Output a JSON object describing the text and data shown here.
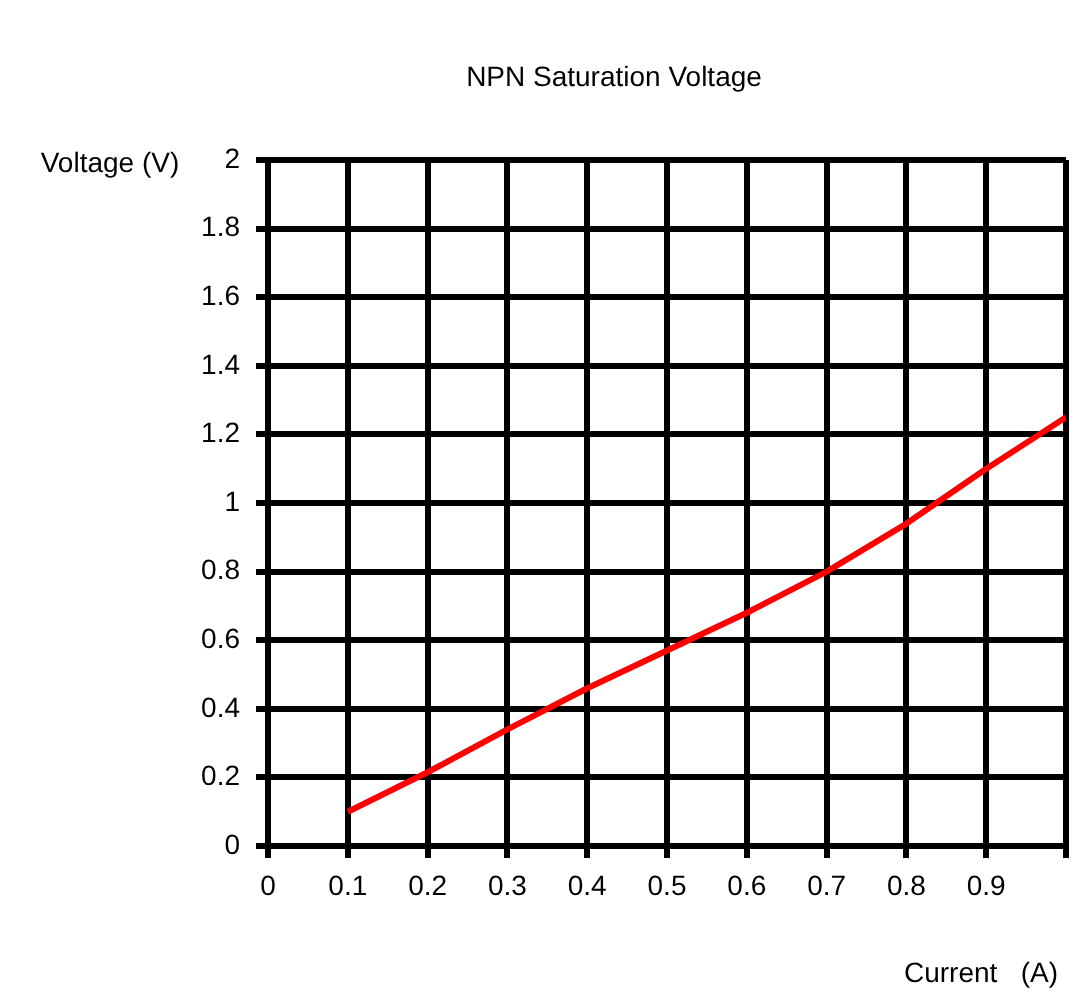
{
  "chart_data": {
    "type": "line",
    "title": "NPN Saturation Voltage",
    "xlabel": "Current   (A)",
    "ylabel": "Voltage (V)",
    "x": [
      0.1,
      0.2,
      0.3,
      0.4,
      0.5,
      0.6,
      0.7,
      0.8,
      0.9,
      1.0
    ],
    "series": [
      {
        "color": "#ff0000",
        "values": [
          0.1,
          0.215,
          0.34,
          0.46,
          0.57,
          0.68,
          0.8,
          0.94,
          1.1,
          1.25
        ]
      }
    ],
    "xlim": [
      0,
      1
    ],
    "xticks": [
      0,
      0.1,
      0.2,
      0.3,
      0.4,
      0.5,
      0.6,
      0.7,
      0.8,
      0.9,
      {
        "value": 1,
        "label": null
      }
    ],
    "ylim": [
      0,
      2
    ],
    "yticks": [
      0,
      0.2,
      0.4,
      0.6,
      0.8,
      1,
      1.2,
      1.4,
      1.6,
      1.8,
      2
    ],
    "grid": true,
    "legend": false,
    "marker": "none",
    "line_style": "solid"
  }
}
